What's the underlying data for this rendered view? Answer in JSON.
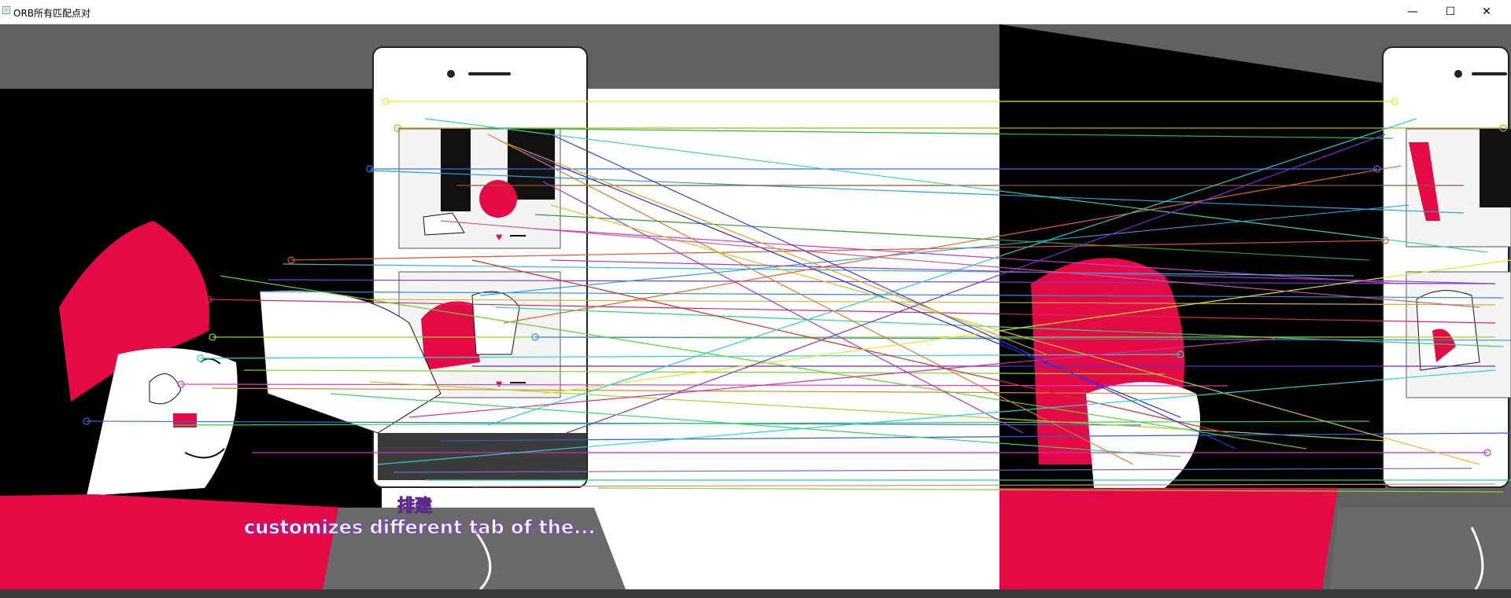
{
  "window": {
    "title": "ORB所有匹配点对",
    "controls": {
      "minimize": "—",
      "maximize": "☐",
      "close": "✕"
    }
  },
  "image": {
    "overlay_cn": "排建",
    "overlay_en": "customizes different tab of the..."
  },
  "colors": {
    "crimson": "#e30a46",
    "gray": "#666666",
    "black": "#000000",
    "white": "#ffffff"
  }
}
